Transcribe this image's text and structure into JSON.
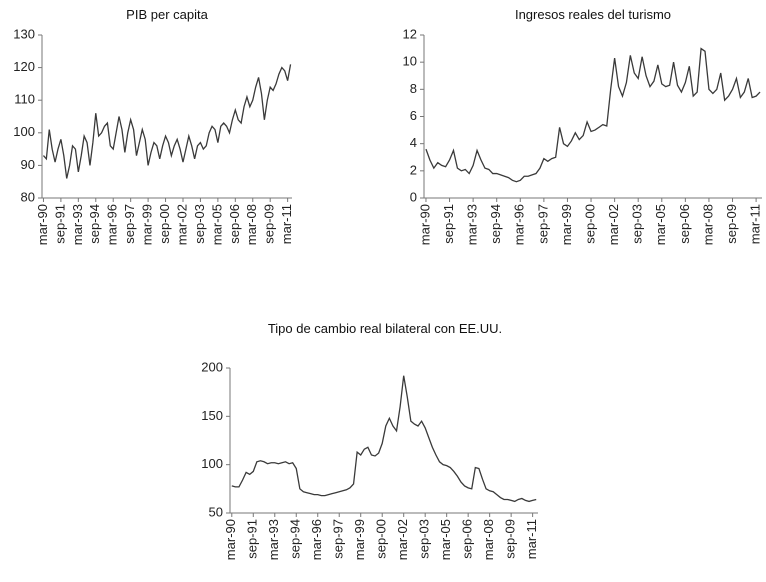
{
  "chart_data": [
    {
      "type": "line",
      "title": "PIB per capita",
      "color": "#3a3a3a",
      "categories": [
        "mar-90",
        null,
        null,
        null,
        null,
        null,
        "sep-91",
        null,
        null,
        null,
        null,
        null,
        "mar-93",
        null,
        null,
        null,
        null,
        null,
        "sep-94",
        null,
        null,
        null,
        null,
        null,
        "mar-96",
        null,
        null,
        null,
        null,
        null,
        "sep-97",
        null,
        null,
        null,
        null,
        null,
        "mar-99",
        null,
        null,
        null,
        null,
        null,
        "sep-00",
        null,
        null,
        null,
        null,
        null,
        "mar-02",
        null,
        null,
        null,
        null,
        null,
        "sep-03",
        null,
        null,
        null,
        null,
        null,
        "mar-05",
        null,
        null,
        null,
        null,
        null,
        "sep-06",
        null,
        null,
        null,
        null,
        null,
        "mar-08",
        null,
        null,
        null,
        null,
        null,
        "sep-09",
        null,
        null,
        null,
        null,
        null,
        "mar-11",
        null
      ],
      "values": [
        93,
        92,
        101,
        95,
        91,
        95,
        98,
        93,
        86,
        90,
        96,
        95,
        88,
        93,
        99,
        97,
        90,
        97,
        106,
        99,
        100,
        102,
        103,
        96,
        95,
        100,
        105,
        101,
        94,
        100,
        104,
        101,
        93,
        97,
        101,
        98,
        90,
        94,
        97,
        96,
        92,
        96,
        99,
        97,
        93,
        96,
        98,
        95,
        91,
        95,
        99,
        96,
        92,
        96,
        97,
        95,
        96,
        100,
        102,
        101,
        97,
        102,
        103,
        102,
        100,
        104,
        107,
        104,
        103,
        108,
        111,
        108,
        110,
        114,
        117,
        112,
        104,
        110,
        114,
        113,
        115,
        118,
        120,
        119,
        116,
        121
      ],
      "ylim": [
        80,
        130
      ],
      "yticks": [
        80,
        90,
        100,
        110,
        120,
        130
      ]
    },
    {
      "type": "line",
      "title": "Ingresos reales del turismo",
      "color": "#3a3a3a",
      "categories": [
        "mar-90",
        null,
        null,
        null,
        null,
        null,
        "sep-91",
        null,
        null,
        null,
        null,
        null,
        "mar-93",
        null,
        null,
        null,
        null,
        null,
        "sep-94",
        null,
        null,
        null,
        null,
        null,
        "mar-96",
        null,
        null,
        null,
        null,
        null,
        "sep-97",
        null,
        null,
        null,
        null,
        null,
        "mar-99",
        null,
        null,
        null,
        null,
        null,
        "sep-00",
        null,
        null,
        null,
        null,
        null,
        "mar-02",
        null,
        null,
        null,
        null,
        null,
        "sep-03",
        null,
        null,
        null,
        null,
        null,
        "mar-05",
        null,
        null,
        null,
        null,
        null,
        "sep-06",
        null,
        null,
        null,
        null,
        null,
        "mar-08",
        null,
        null,
        null,
        null,
        null,
        "sep-09",
        null,
        null,
        null,
        null,
        null,
        "mar-11",
        null
      ],
      "values": [
        3.6,
        2.8,
        2.2,
        2.6,
        2.4,
        2.3,
        2.8,
        3.5,
        2.2,
        2.0,
        2.1,
        1.8,
        2.4,
        3.5,
        2.8,
        2.2,
        2.1,
        1.8,
        1.8,
        1.7,
        1.6,
        1.5,
        1.3,
        1.2,
        1.3,
        1.6,
        1.6,
        1.7,
        1.8,
        2.2,
        2.9,
        2.7,
        2.9,
        3.0,
        5.2,
        4.0,
        3.8,
        4.2,
        4.8,
        4.3,
        4.6,
        5.6,
        4.9,
        5.0,
        5.2,
        5.4,
        5.3,
        8.0,
        10.3,
        8.2,
        7.5,
        8.5,
        10.5,
        9.2,
        8.8,
        10.4,
        9.0,
        8.2,
        8.6,
        9.8,
        8.4,
        8.2,
        8.3,
        10.0,
        8.3,
        7.8,
        8.5,
        9.7,
        7.5,
        7.8,
        11.0,
        10.8,
        8.0,
        7.7,
        8.0,
        9.2,
        7.2,
        7.5,
        8.0,
        8.8,
        7.4,
        7.8,
        8.8,
        7.4,
        7.5,
        7.8
      ],
      "ylim": [
        0,
        12
      ],
      "yticks": [
        0,
        2,
        4,
        6,
        8,
        10,
        12
      ]
    },
    {
      "type": "line",
      "title": "Tipo de cambio real bilateral con EE.UU.",
      "color": "#3a3a3a",
      "categories": [
        "mar-90",
        null,
        null,
        null,
        null,
        null,
        "sep-91",
        null,
        null,
        null,
        null,
        null,
        "mar-93",
        null,
        null,
        null,
        null,
        null,
        "sep-94",
        null,
        null,
        null,
        null,
        null,
        "mar-96",
        null,
        null,
        null,
        null,
        null,
        "sep-97",
        null,
        null,
        null,
        null,
        null,
        "mar-99",
        null,
        null,
        null,
        null,
        null,
        "sep-00",
        null,
        null,
        null,
        null,
        null,
        "mar-02",
        null,
        null,
        null,
        null,
        null,
        "sep-03",
        null,
        null,
        null,
        null,
        null,
        "mar-05",
        null,
        null,
        null,
        null,
        null,
        "sep-06",
        null,
        null,
        null,
        null,
        null,
        "mar-08",
        null,
        null,
        null,
        null,
        null,
        "sep-09",
        null,
        null,
        null,
        null,
        null,
        "mar-11",
        null
      ],
      "values": [
        78,
        77,
        77,
        84,
        92,
        90,
        93,
        103,
        104,
        103,
        101,
        102,
        102,
        101,
        102,
        103,
        101,
        102,
        96,
        75,
        72,
        71,
        70,
        69,
        69,
        68,
        68,
        69,
        70,
        71,
        72,
        73,
        74,
        76,
        80,
        113,
        110,
        116,
        118,
        110,
        109,
        112,
        122,
        140,
        148,
        140,
        135,
        160,
        192,
        170,
        145,
        142,
        140,
        145,
        138,
        128,
        118,
        110,
        103,
        100,
        99,
        97,
        93,
        88,
        82,
        78,
        76,
        75,
        97,
        96,
        85,
        75,
        73,
        72,
        69,
        66,
        64,
        64,
        63,
        62,
        64,
        65,
        63,
        62,
        63,
        64
      ],
      "ylim": [
        50,
        200
      ],
      "yticks": [
        50,
        100,
        150,
        200
      ]
    }
  ]
}
